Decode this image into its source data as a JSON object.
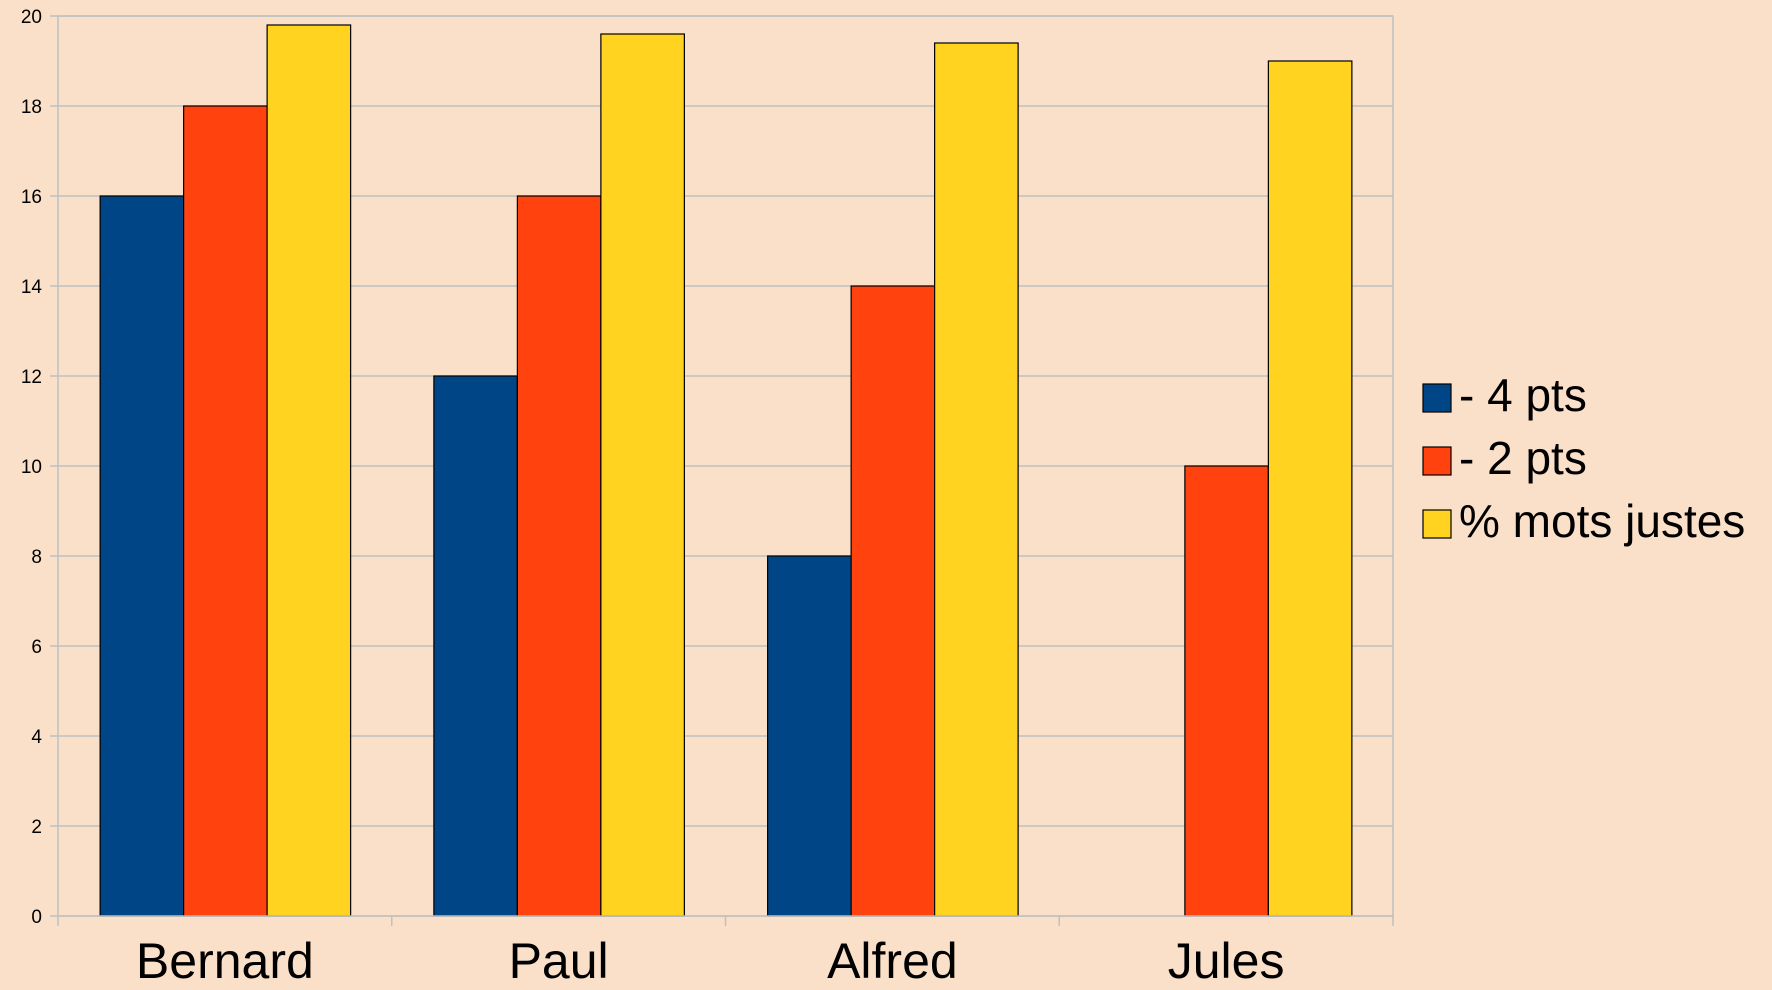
{
  "chart_data": {
    "type": "bar",
    "title": "",
    "xlabel": "",
    "ylabel": "",
    "categories": [
      "Bernard",
      "Paul",
      "Alfred",
      "Jules"
    ],
    "series": [
      {
        "name": "- 4 pts",
        "color": "#004586",
        "values": [
          16,
          12,
          8,
          null
        ]
      },
      {
        "name": " - 2 pts",
        "color": "#FF420E",
        "values": [
          18,
          16,
          14,
          10
        ]
      },
      {
        "name": "% mots justes",
        "color": "#FFD320",
        "values": [
          19.8,
          19.6,
          19.4,
          19
        ]
      }
    ],
    "ylim": [
      0,
      20
    ],
    "yticks": [
      0,
      2,
      4,
      6,
      8,
      10,
      12,
      14,
      16,
      18,
      20
    ],
    "grid": true,
    "legend_position": "right",
    "background_color": "#FAE0C8",
    "grid_color": "#C0C0C0"
  }
}
